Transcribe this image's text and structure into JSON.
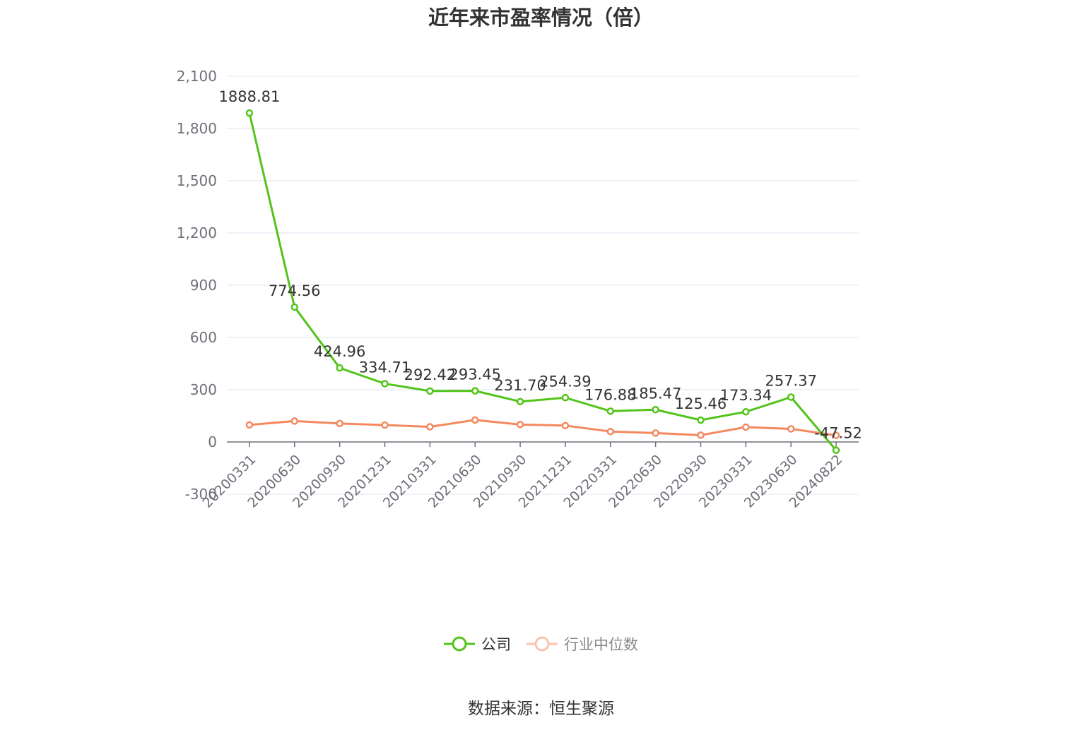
{
  "chart_data": {
    "type": "line",
    "title": "近年来市盈率情况（倍）",
    "categories": [
      "20200331",
      "20200630",
      "20200930",
      "20201231",
      "20210331",
      "20210630",
      "20210930",
      "20211231",
      "20220331",
      "20220630",
      "20220930",
      "20230331",
      "20230630",
      "20240822"
    ],
    "ylim": [
      -300,
      2100
    ],
    "yticks": [
      -300,
      0,
      300,
      600,
      900,
      1200,
      1500,
      1800,
      2100
    ],
    "ytick_labels": [
      "-300",
      "0",
      "300",
      "600",
      "900",
      "1,200",
      "1,500",
      "1,800",
      "2,100"
    ],
    "grid": true,
    "legend_position": "bottom",
    "series": [
      {
        "name": "公司",
        "color": "#52c41a",
        "values": [
          1888.81,
          774.56,
          424.96,
          334.71,
          292.42,
          293.45,
          231.7,
          254.39,
          176.88,
          185.47,
          125.46,
          173.34,
          257.37,
          -47.52
        ],
        "labels": [
          "1888.81",
          "774.56",
          "424.96",
          "334.71",
          "292.42",
          "293.45",
          "231.70",
          "254.39",
          "176.88",
          "185.47",
          "125.46",
          "173.34",
          "257.37",
          "-47.52"
        ]
      },
      {
        "name": "行业中位数",
        "color": "#f4895f",
        "legend_color": "#f9c4ac",
        "values": [
          98,
          120,
          106,
          97,
          87,
          126,
          100,
          94,
          60,
          51,
          39,
          85,
          75,
          38
        ]
      }
    ]
  },
  "source_text": "数据来源：恒生聚源"
}
